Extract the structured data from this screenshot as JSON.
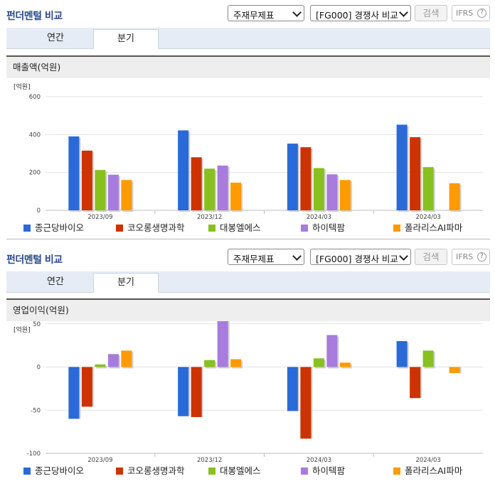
{
  "panels": [
    {
      "title": "펀더멘털 비교",
      "select_statement": "주재무제표",
      "select_compare": "[FG000] 경쟁사 비교",
      "search_label": "검색",
      "ifrs_label": "IFRS",
      "help_mark": "?",
      "tabs": [
        "연간",
        "분기"
      ],
      "active_tab": "분기",
      "chart_header": "매출액(억원)"
    },
    {
      "title": "펀더멘털 비교",
      "select_statement": "주재무제표",
      "select_compare": "[FG000] 경쟁사 비교",
      "search_label": "검색",
      "ifrs_label": "IFRS",
      "help_mark": "?",
      "tabs": [
        "연간",
        "분기"
      ],
      "active_tab": "분기",
      "chart_header": "영업이익(억원)"
    }
  ],
  "legend": [
    {
      "name": "종근당바이오",
      "color": "#2a6ad8"
    },
    {
      "name": "코오롱생명과학",
      "color": "#cc3300"
    },
    {
      "name": "대봉엘에스",
      "color": "#88c020"
    },
    {
      "name": "하이텍팜",
      "color": "#a77cdc"
    },
    {
      "name": "폴라리스AI파마",
      "color": "#ff9a00"
    }
  ],
  "chart_data": [
    {
      "type": "bar",
      "title": "매출액(억원)",
      "unit_label": "[억원]",
      "categories": [
        "2023/09",
        "2023/12",
        "2024/03",
        "2024/03"
      ],
      "yticks": [
        0,
        200,
        400,
        600
      ],
      "ylim": [
        0,
        600
      ],
      "grid": true,
      "legend_position": "bottom",
      "series": [
        {
          "name": "종근당바이오",
          "color": "#2a6ad8",
          "values": [
            390,
            422,
            352,
            452
          ]
        },
        {
          "name": "코오롱생명과학",
          "color": "#cc3300",
          "values": [
            315,
            280,
            333,
            386
          ]
        },
        {
          "name": "대봉엘에스",
          "color": "#88c020",
          "values": [
            213,
            220,
            223,
            228
          ]
        },
        {
          "name": "하이텍팜",
          "color": "#a77cdc",
          "values": [
            188,
            236,
            190,
            null
          ]
        },
        {
          "name": "폴라리스AI파마",
          "color": "#ff9a00",
          "values": [
            160,
            146,
            160,
            143
          ]
        }
      ]
    },
    {
      "type": "bar",
      "title": "영업이익(억원)",
      "unit_label": "[억원]",
      "categories": [
        "2023/09",
        "2023/12",
        "2024/03",
        "2024/03"
      ],
      "yticks": [
        -100,
        -50,
        0,
        50,
        100
      ],
      "ylim": [
        -100,
        100
      ],
      "grid": true,
      "legend_position": "bottom",
      "series": [
        {
          "name": "종근당바이오",
          "color": "#2a6ad8",
          "values": [
            -60,
            -57,
            -51,
            30
          ]
        },
        {
          "name": "코오롱생명과학",
          "color": "#cc3300",
          "values": [
            -46,
            -58,
            -83,
            -36
          ]
        },
        {
          "name": "대봉엘에스",
          "color": "#88c020",
          "values": [
            3,
            8,
            10,
            19
          ]
        },
        {
          "name": "하이텍팜",
          "color": "#a77cdc",
          "values": [
            15,
            58,
            37,
            null
          ]
        },
        {
          "name": "폴라리스AI파마",
          "color": "#ff9a00",
          "values": [
            19,
            9,
            5,
            -7
          ]
        }
      ]
    }
  ]
}
